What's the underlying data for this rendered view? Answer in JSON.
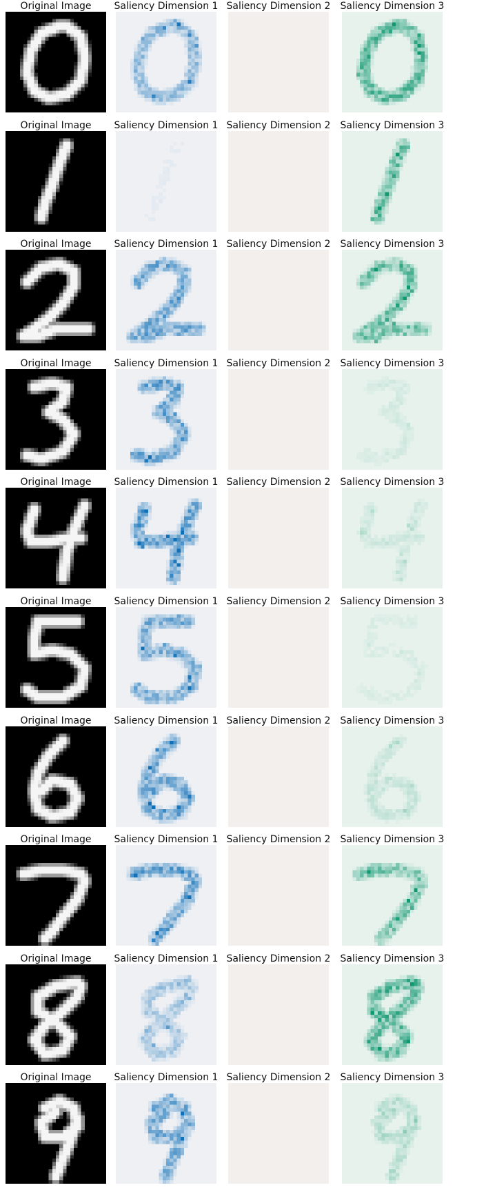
{
  "chart_data": {
    "type": "heatmap",
    "layout": "10 rows x 4 panels",
    "panel_titles": [
      "Original Image",
      "Saliency Dimension 1",
      "Saliency Dimension 2",
      "Saliency Dimension 3"
    ],
    "panel_colormaps": [
      "gray",
      "blues",
      "reds",
      "greens"
    ],
    "panel_colors": {
      "gray_bg": "#000000",
      "blues_bg": "#eef0f4",
      "reds_bg": "#f2efec",
      "greens_bg": "#e7f2ed",
      "blues_peak": "#1070b8",
      "greens_peak": "#109870"
    },
    "image_size": [
      28,
      28
    ],
    "axes": "off",
    "rows": [
      {
        "digit": "0",
        "titles": [
          "Original Image",
          "Saliency Dimension 1",
          "Saliency Dimension 2",
          "Saliency Dimension 3"
        ],
        "saliency_strength": [
          0.55,
          0.0,
          0.85
        ]
      },
      {
        "digit": "1",
        "titles": [
          "Original Image",
          "Saliency Dimension 1",
          "Saliency Dimension 2",
          "Saliency Dimension 3"
        ],
        "saliency_strength": [
          0.05,
          0.0,
          0.8
        ]
      },
      {
        "digit": "2",
        "titles": [
          "Original Image",
          "Saliency Dimension 1",
          "Saliency Dimension 2",
          "Saliency Dimension 3"
        ],
        "saliency_strength": [
          0.75,
          0.0,
          0.75
        ]
      },
      {
        "digit": "3",
        "titles": [
          "Original Image",
          "Saliency Dimension 1",
          "Saliency Dimension 2",
          "Saliency Dimension 3"
        ],
        "saliency_strength": [
          0.8,
          0.0,
          0.12
        ]
      },
      {
        "digit": "4",
        "titles": [
          "Original Image",
          "Saliency Dimension 1",
          "Saliency Dimension 2",
          "Saliency Dimension 3"
        ],
        "saliency_strength": [
          0.85,
          0.0,
          0.15
        ]
      },
      {
        "digit": "5",
        "titles": [
          "Original Image",
          "Saliency Dimension 1",
          "Saliency Dimension 2",
          "Saliency Dimension 3"
        ],
        "saliency_strength": [
          0.7,
          0.0,
          0.08
        ]
      },
      {
        "digit": "6",
        "titles": [
          "Original Image",
          "Saliency Dimension 1",
          "Saliency Dimension 2",
          "Saliency Dimension 3"
        ],
        "saliency_strength": [
          0.75,
          0.0,
          0.2
        ]
      },
      {
        "digit": "7",
        "titles": [
          "Original Image",
          "Saliency Dimension 1",
          "Saliency Dimension 2",
          "Saliency Dimension 3"
        ],
        "saliency_strength": [
          0.8,
          0.0,
          0.7
        ]
      },
      {
        "digit": "8",
        "titles": [
          "Original Image",
          "Saliency Dimension 1",
          "Saliency Dimension 2",
          "Saliency Dimension 3"
        ],
        "saliency_strength": [
          0.4,
          0.0,
          0.9
        ]
      },
      {
        "digit": "9",
        "titles": [
          "Original Image",
          "Saliency Dimension 1",
          "Saliency Dimension 2",
          "Saliency Dimension 3"
        ],
        "saliency_strength": [
          0.7,
          0.0,
          0.3
        ]
      }
    ]
  }
}
